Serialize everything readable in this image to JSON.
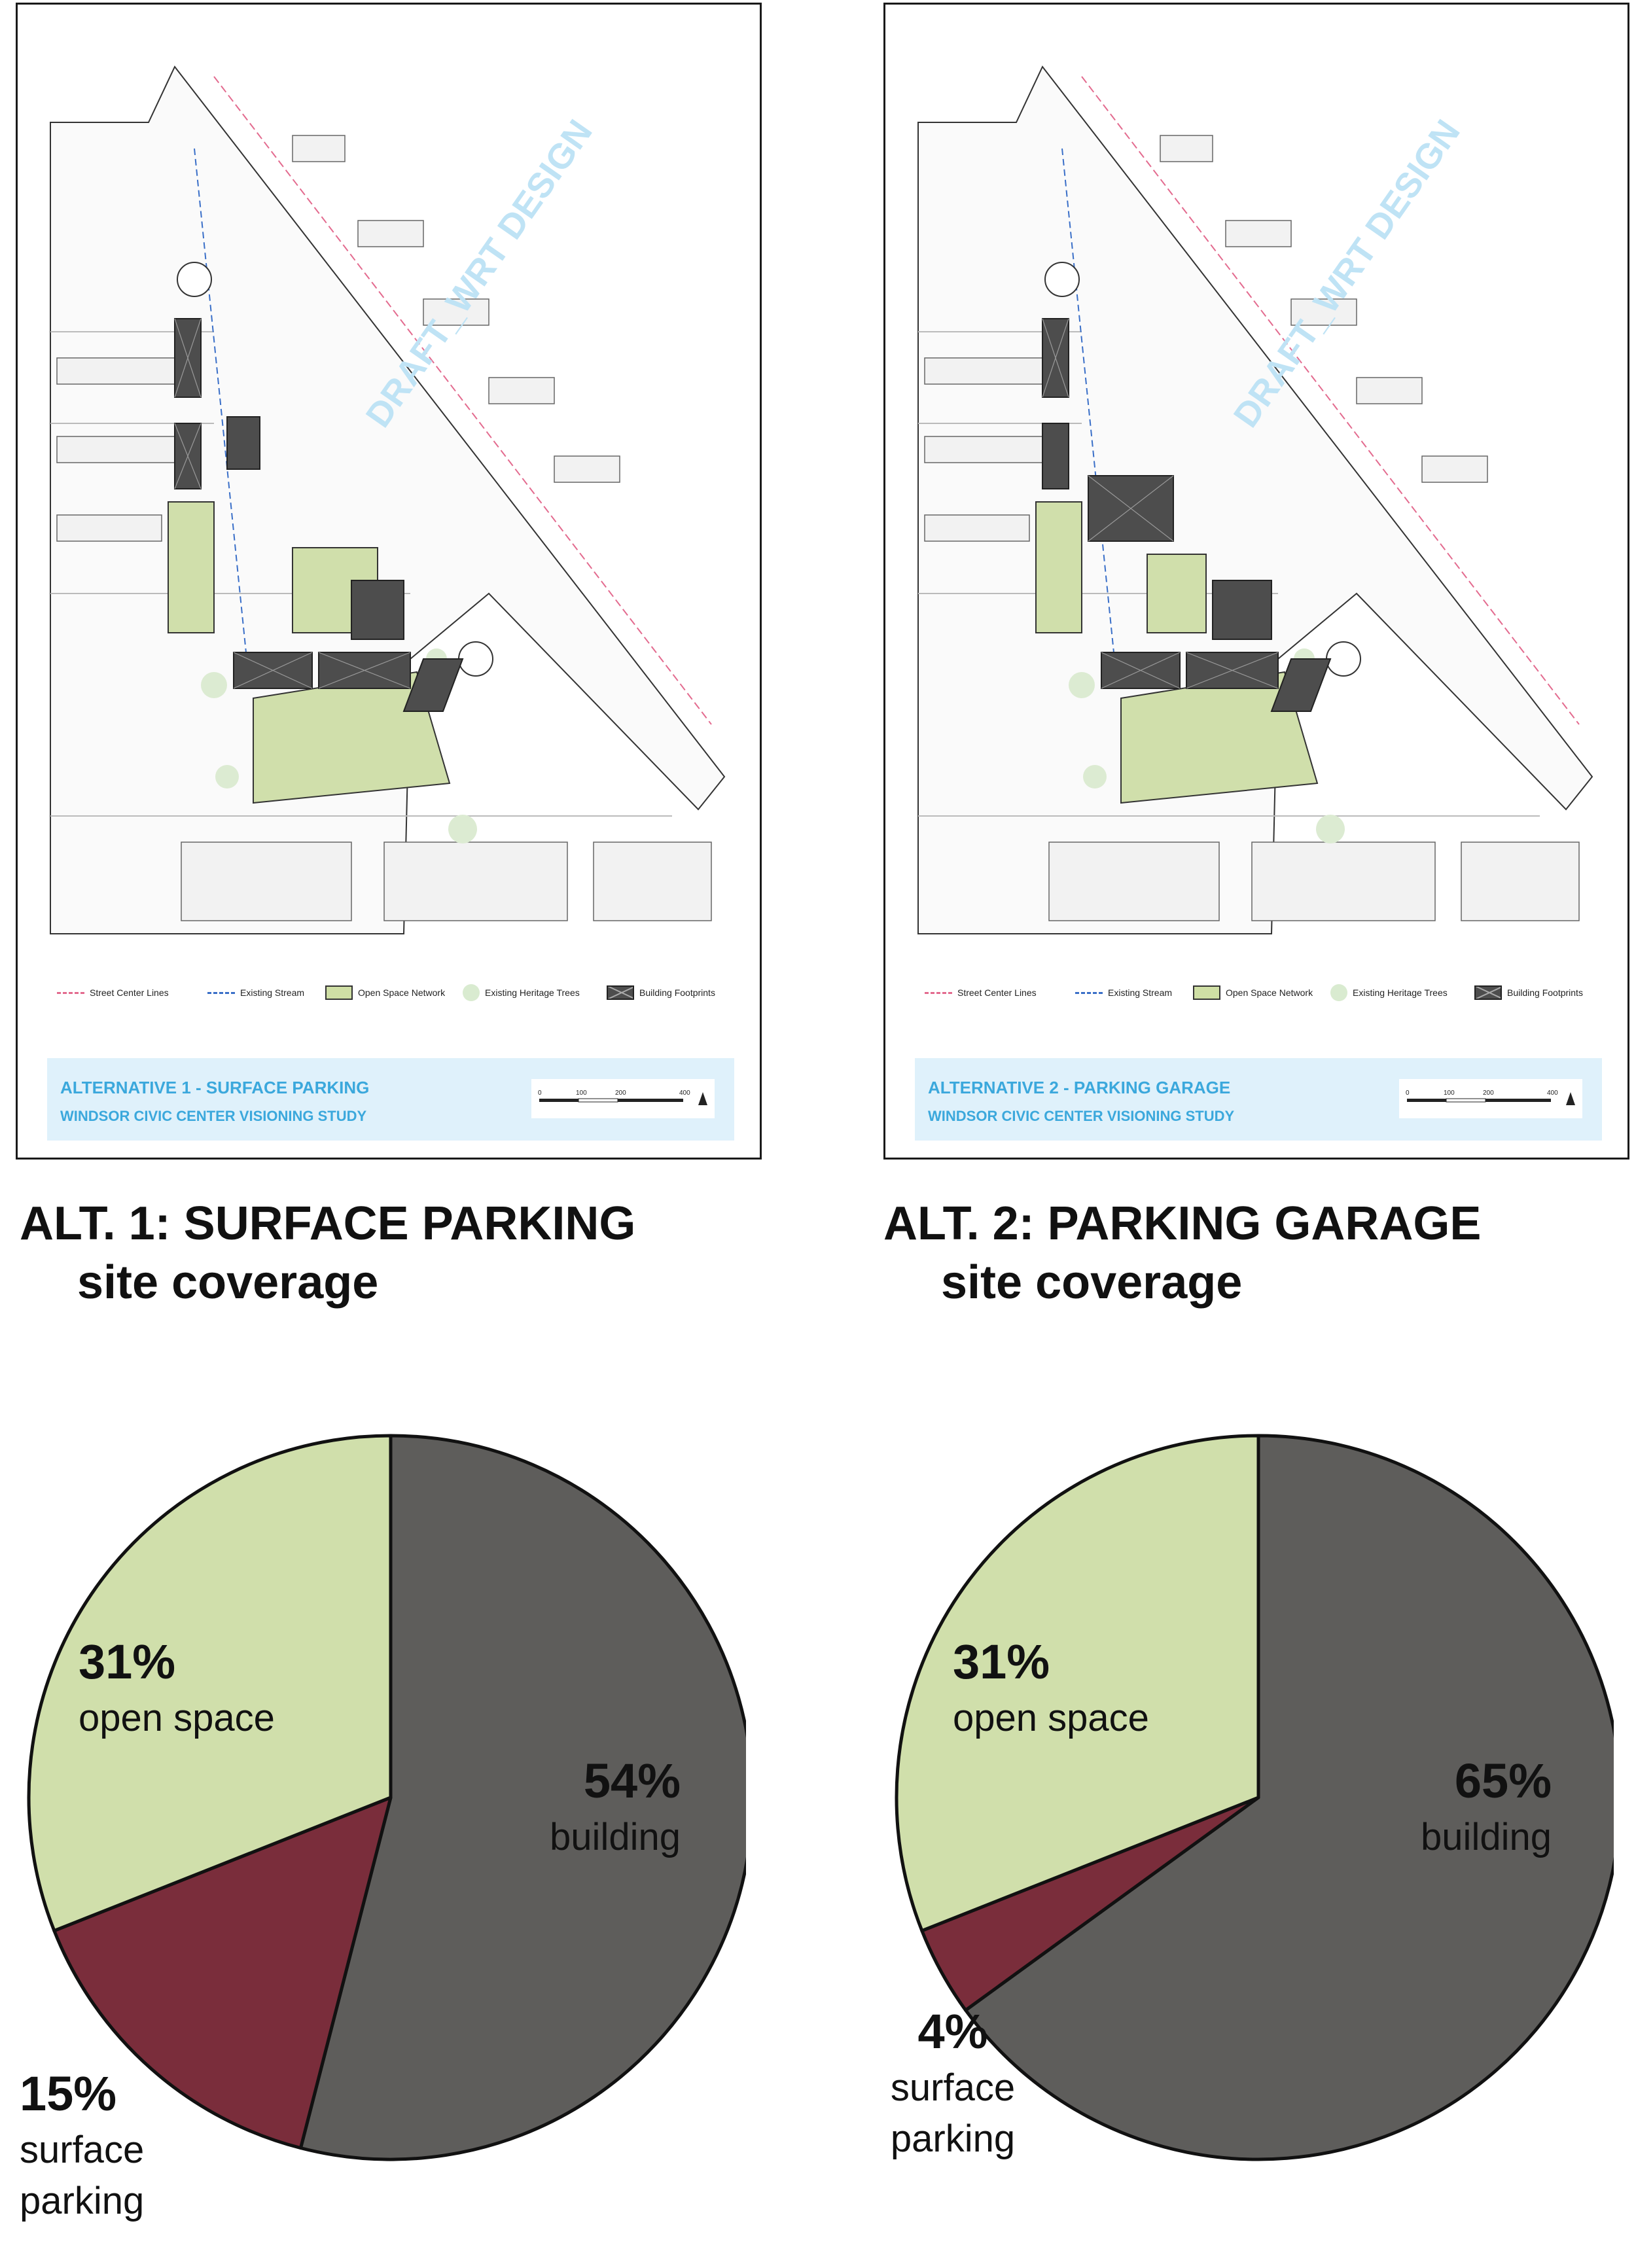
{
  "panels": [
    {
      "title": "ALTERNATIVE 1 - SURFACE PARKING",
      "subtitle": "WINDSOR CIVIC CENTER VISIONING STUDY",
      "watermark": "DRAFT_WRT DESIGN",
      "legend": [
        "Street Center Lines",
        "Existing Stream",
        "Open Space Network",
        "Existing Heritage Trees",
        "Building Footprints"
      ],
      "scale_ticks": [
        "0",
        "100",
        "200",
        "400"
      ]
    },
    {
      "title": "ALTERNATIVE 2 - PARKING GARAGE",
      "subtitle": "WINDSOR CIVIC CENTER VISIONING STUDY",
      "watermark": "DRAFT_WRT DESIGN",
      "legend": [
        "Street Center Lines",
        "Existing Stream",
        "Open Space Network",
        "Existing Heritage Trees",
        "Building Footprints"
      ],
      "scale_ticks": [
        "0",
        "100",
        "200",
        "400"
      ]
    }
  ],
  "headings": [
    {
      "line1": "ALT. 1: SURFACE PARKING",
      "line2": "site coverage"
    },
    {
      "line1": "ALT. 2: PARKING GARAGE",
      "line2": "site coverage"
    }
  ],
  "colors": {
    "building": "#5e5d5b",
    "surface_parking": "#7a2d3b",
    "open_space": "#d0dfab",
    "outline": "#111111"
  },
  "chart_data": [
    {
      "type": "pie",
      "title": "ALT. 1: SURFACE PARKING site coverage",
      "categories": [
        "building",
        "surface parking",
        "open space"
      ],
      "values": [
        54,
        15,
        31
      ],
      "labels": [
        "54%",
        "15%",
        "31%"
      ],
      "colors": [
        "#5e5d5b",
        "#7a2d3b",
        "#d0dfab"
      ],
      "start": "12 o'clock",
      "direction": "clockwise"
    },
    {
      "type": "pie",
      "title": "ALT. 2: PARKING GARAGE site coverage",
      "categories": [
        "building",
        "surface parking",
        "open space"
      ],
      "values": [
        65,
        4,
        31
      ],
      "labels": [
        "65%",
        "4%",
        "31%"
      ],
      "colors": [
        "#5e5d5b",
        "#7a2d3b",
        "#d0dfab"
      ],
      "start": "12 o'clock",
      "direction": "clockwise"
    }
  ]
}
